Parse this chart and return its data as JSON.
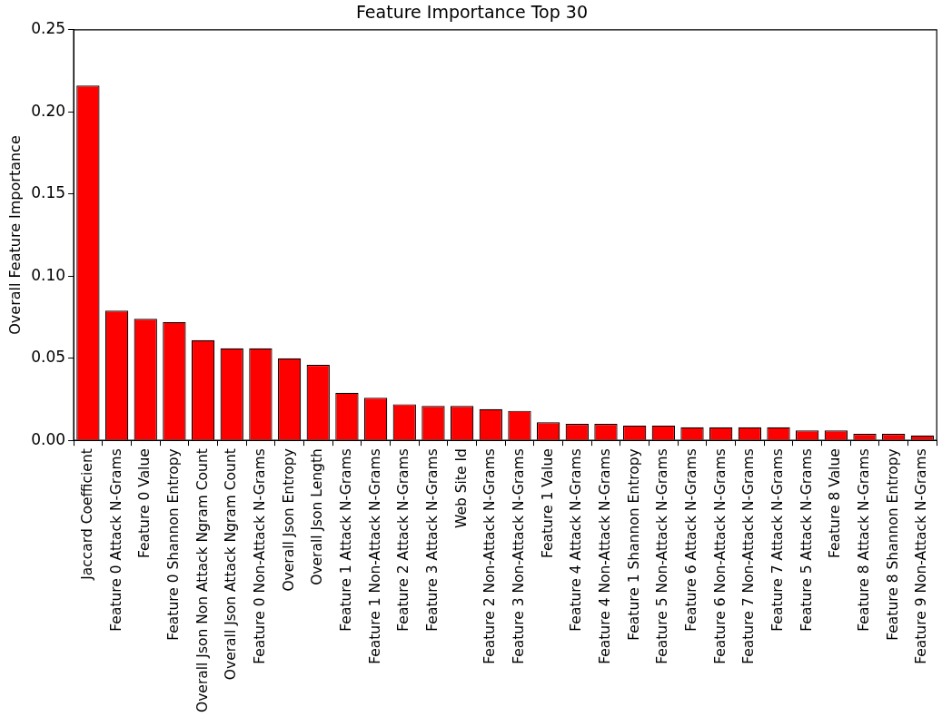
{
  "chart_data": {
    "type": "bar",
    "title": "Feature Importance Top 30",
    "ylabel": "Overall Feature Importance",
    "categories": [
      "Jaccard Coefficient",
      "Feature 0 Attack N-Grams",
      "Feature 0 Value",
      "Feature 0 Shannon Entropy",
      "Overall Json Non Attack Ngram Count",
      "Overall Json Attack Ngram Count",
      "Feature 0 Non-Attack N-Grams",
      "Overall Json Entropy",
      "Overall Json Length",
      "Feature 1 Attack N-Grams",
      "Feature 1 Non-Attack N-Grams",
      "Feature 2 Attack N-Grams",
      "Feature 3 Attack N-Grams",
      "Web Site Id",
      "Feature 2 Non-Attack N-Grams",
      "Feature 3 Non-Attack N-Grams",
      "Feature 1 Value",
      "Feature 4 Attack N-Grams",
      "Feature 4 Non-Attack N-Grams",
      "Feature 1 Shannon Entropy",
      "Feature 5 Non-Attack N-Grams",
      "Feature 6 Attack N-Grams",
      "Feature 6 Non-Attack N-Grams",
      "Feature 7 Non-Attack N-Grams",
      "Feature 7 Attack N-Grams",
      "Feature 5 Attack N-Grams",
      "Feature 8 Value",
      "Feature 8 Attack N-Grams",
      "Feature 8 Shannon Entropy",
      "Feature 9 Non-Attack N-Grams"
    ],
    "values": [
      0.216,
      0.079,
      0.074,
      0.072,
      0.061,
      0.056,
      0.056,
      0.05,
      0.046,
      0.029,
      0.026,
      0.022,
      0.021,
      0.021,
      0.019,
      0.018,
      0.011,
      0.01,
      0.01,
      0.009,
      0.009,
      0.008,
      0.008,
      0.008,
      0.008,
      0.006,
      0.006,
      0.004,
      0.004,
      0.003
    ],
    "color": "#ff0000",
    "ylim": [
      0,
      0.25
    ],
    "yticks": [
      {
        "value": 0,
        "label": "0.00"
      },
      {
        "value": 0.05,
        "label": "0.05"
      },
      {
        "value": 0.1,
        "label": "0.10"
      },
      {
        "value": 0.15,
        "label": "0.15"
      },
      {
        "value": 0.2,
        "label": "0.20"
      },
      {
        "value": 0.25,
        "label": "0.25"
      }
    ],
    "grid": false,
    "legend": false
  }
}
